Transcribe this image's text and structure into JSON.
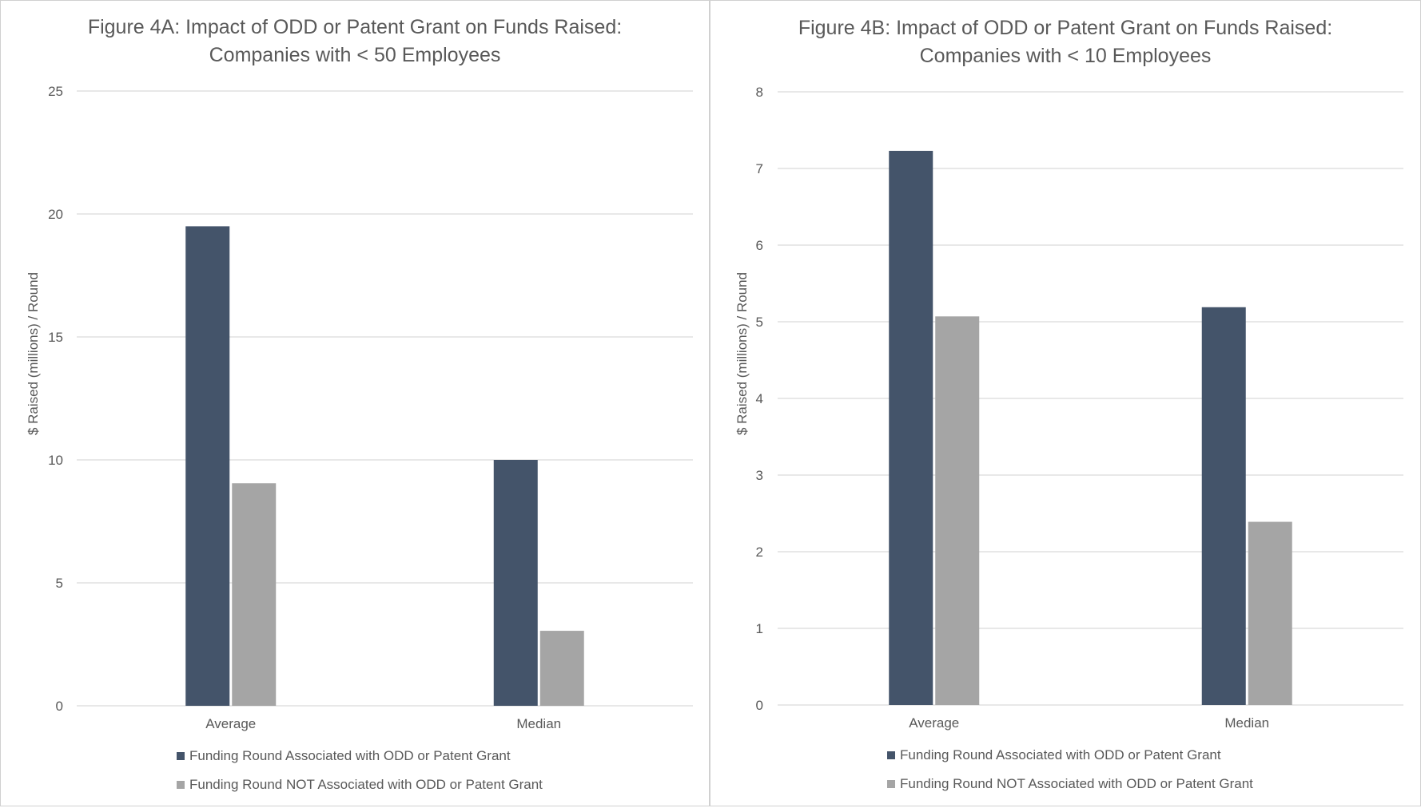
{
  "chart_data": [
    {
      "type": "bar",
      "title_line1": "Figure 4A: Impact of ODD or Patent Grant on Funds Raised:",
      "title_line2": "Companies with < 50 Employees",
      "xlabel": "",
      "ylabel": "$ Raised (millions) / Round",
      "ylim": [
        0,
        25
      ],
      "yticks": [
        0,
        5,
        10,
        15,
        20,
        25
      ],
      "grid": true,
      "legend_position": "bottom",
      "categories": [
        "Average",
        "Median"
      ],
      "series": [
        {
          "name": "Funding Round Associated with ODD or Patent Grant",
          "color": "#44546a",
          "values": [
            19.5,
            10.0
          ]
        },
        {
          "name": "Funding Round NOT Associated with ODD or Patent Grant",
          "color": "#a5a5a5",
          "values": [
            9.05,
            3.05
          ]
        }
      ]
    },
    {
      "type": "bar",
      "title_line1": "Figure 4B: Impact of ODD or Patent Grant on Funds Raised:",
      "title_line2": "Companies with < 10 Employees",
      "xlabel": "",
      "ylabel": "$ Raised (millions) / Round",
      "ylim": [
        0,
        8
      ],
      "yticks": [
        0,
        1,
        2,
        3,
        4,
        5,
        6,
        7,
        8
      ],
      "grid": true,
      "legend_position": "bottom",
      "categories": [
        "Average",
        "Median"
      ],
      "series": [
        {
          "name": "Funding Round Associated with ODD or Patent Grant",
          "color": "#44546a",
          "values": [
            7.23,
            5.19
          ]
        },
        {
          "name": "Funding Round NOT Associated with ODD or Patent Grant",
          "color": "#a5a5a5",
          "values": [
            5.07,
            2.39
          ]
        }
      ]
    }
  ]
}
